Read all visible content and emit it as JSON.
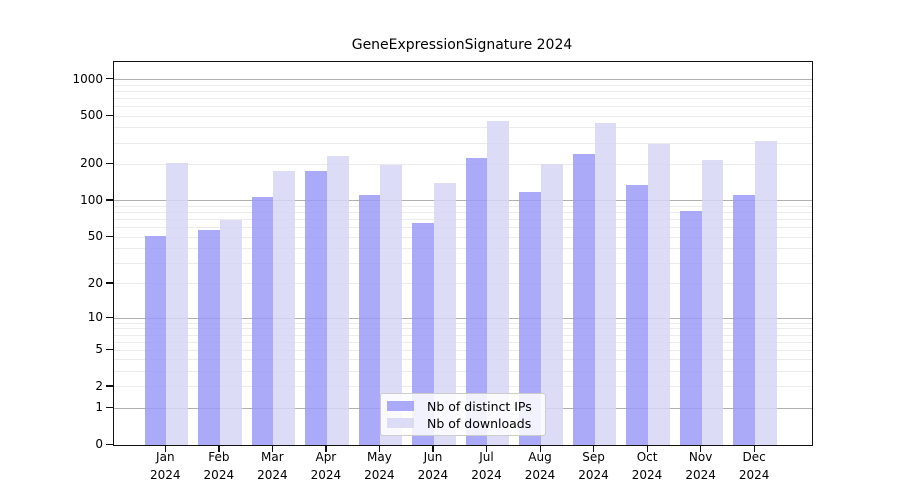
{
  "title": "GeneExpressionSignature 2024",
  "chart_data": {
    "type": "bar",
    "title": "GeneExpressionSignature 2024",
    "xlabel": "",
    "ylabel": "",
    "y_scale": "log1p",
    "categories": [
      "Jan 2024",
      "Feb 2024",
      "Mar 2024",
      "Apr 2024",
      "May 2024",
      "Jun 2024",
      "Jul 2024",
      "Aug 2024",
      "Sep 2024",
      "Oct 2024",
      "Nov 2024",
      "Dec 2024"
    ],
    "series": [
      {
        "name": "Nb of distinct IPs",
        "color": "#a9a9f7",
        "fill": "rgba(155,155,247,0.85)",
        "values": [
          51,
          57,
          107,
          176,
          111,
          65,
          225,
          118,
          243,
          135,
          83,
          113
        ]
      },
      {
        "name": "Nb of downloads",
        "color": "#dcdcf7",
        "fill": "rgba(214,214,246,0.85)",
        "values": [
          205,
          69,
          178,
          236,
          200,
          140,
          460,
          201,
          438,
          296,
          219,
          310
        ]
      }
    ],
    "y_ticks": [
      0,
      1,
      2,
      5,
      10,
      20,
      50,
      100,
      200,
      500,
      1000
    ],
    "ylim": [
      0,
      1420
    ],
    "grid": true,
    "gridlines": {
      "major": [
        1,
        10,
        100,
        1000
      ],
      "minor": [
        2,
        3,
        4,
        5,
        6,
        7,
        8,
        9,
        20,
        30,
        40,
        50,
        60,
        70,
        80,
        90,
        200,
        300,
        400,
        500,
        600,
        700,
        800,
        900
      ]
    },
    "legend_position": "bottom-center"
  },
  "colors": {
    "grid_major": "#b0b0b0",
    "grid_minor": "#ebebeb",
    "axis": "#111111",
    "background": "#ffffff"
  }
}
